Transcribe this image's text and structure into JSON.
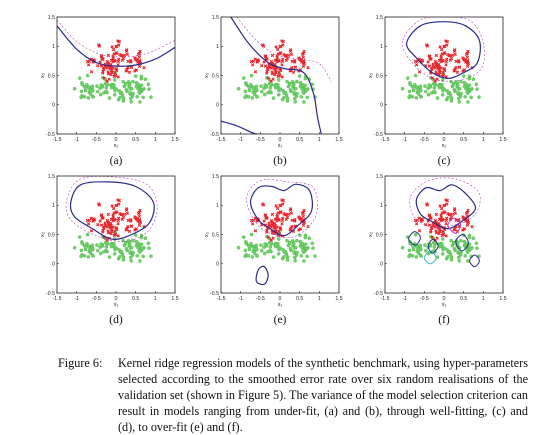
{
  "figure": {
    "panels": [
      {
        "label": "(a)",
        "model": "under-fit"
      },
      {
        "label": "(b)",
        "model": "under-fit"
      },
      {
        "label": "(c)",
        "model": "well-fitting"
      },
      {
        "label": "(d)",
        "model": "well-fitting"
      },
      {
        "label": "(e)",
        "model": "over-fit"
      },
      {
        "label": "(f)",
        "model": "over-fit"
      }
    ],
    "axes": {
      "xlabel": "x₁",
      "ylabel": "x₂",
      "xlim": [
        -1.5,
        1.5
      ],
      "ylim": [
        -0.5,
        1.5
      ],
      "xticks": [
        "-1.5",
        "-1",
        "-0.5",
        "0",
        "0.5",
        "1",
        "1.5"
      ],
      "yticks": [
        "-0.5",
        "0",
        "0.5",
        "1",
        "1.5"
      ]
    },
    "colors": {
      "class_1": "#e8242a",
      "class_2": "#6fd36a",
      "decision_boundary": "#2a2a8a",
      "contour_cyan": "#25b8c8",
      "contour_magenta": "#c03ac0"
    }
  },
  "caption": {
    "label": "Figure 6:",
    "text": "Kernel ridge regression models of the synthetic benchmark, using hyper-parameters selected according to the smoothed error rate over six random realisations of the validation set (shown in Figure 5). The variance of the model selection criterion can result in models ranging from under-fit, (a) and (b), through well-fitting, (c) and (d), to over-fit (e) and (f)."
  }
}
